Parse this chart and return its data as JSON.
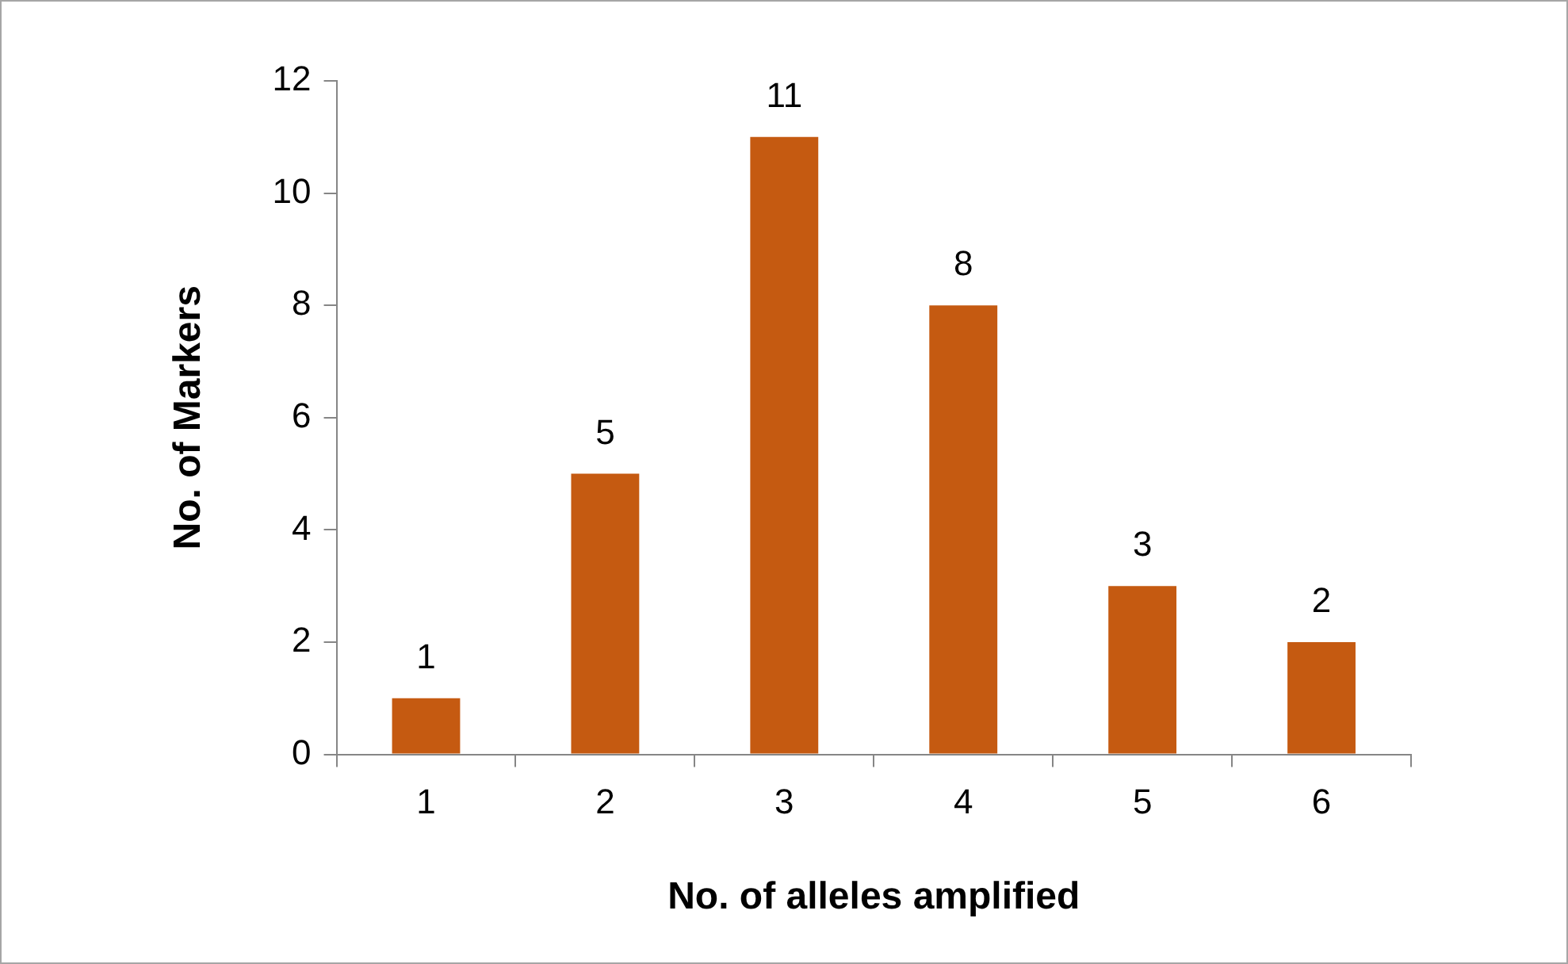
{
  "chart_data": {
    "type": "bar",
    "xlabel": "No. of alleles amplified",
    "ylabel": "No. of Markers",
    "categories": [
      "1",
      "2",
      "3",
      "4",
      "5",
      "6"
    ],
    "values": [
      1,
      5,
      11,
      8,
      3,
      2
    ],
    "color": "#c55a11",
    "ylim": [
      0,
      12
    ],
    "yticks": [
      0,
      2,
      4,
      6,
      8,
      10,
      12
    ],
    "grid": false,
    "legend": false,
    "data_labels": true
  }
}
